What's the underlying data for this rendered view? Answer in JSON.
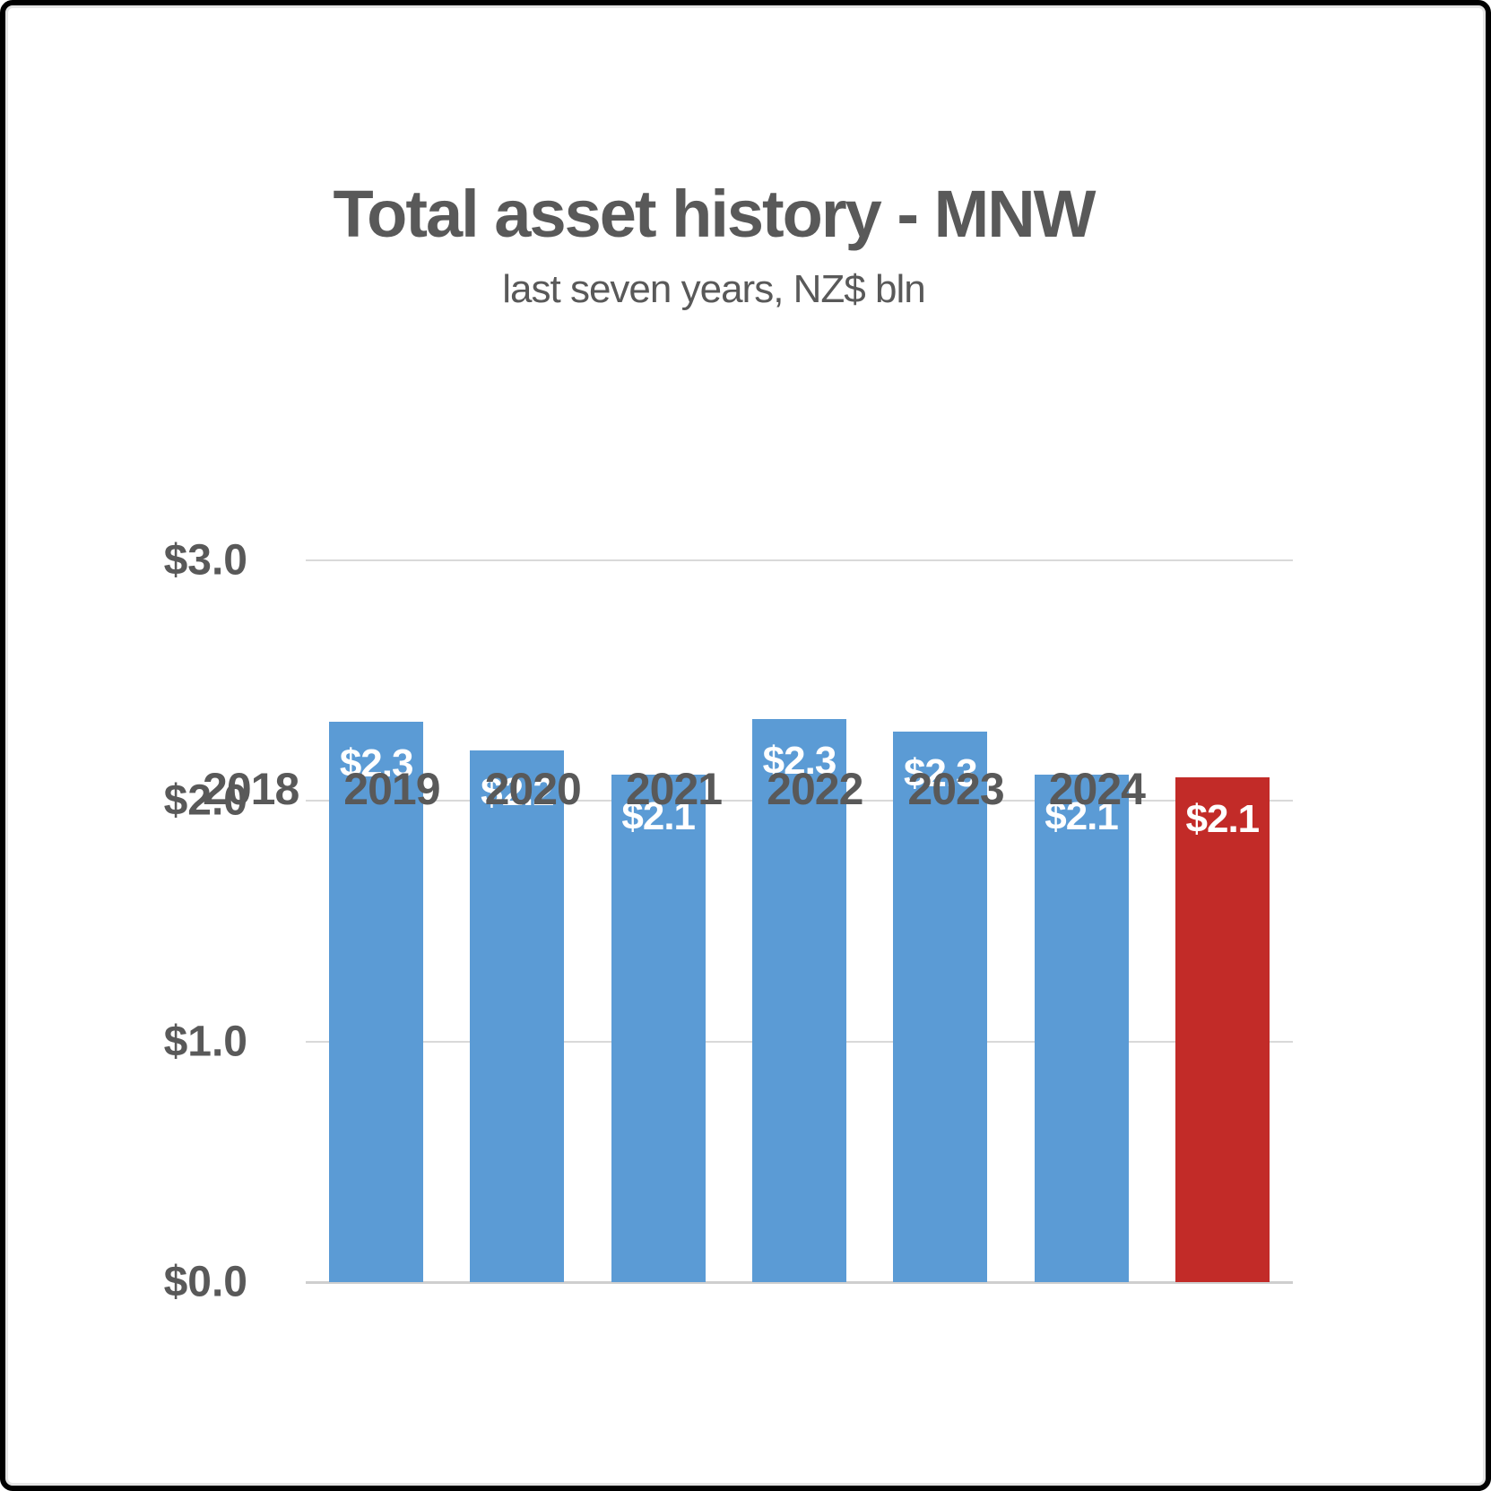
{
  "chart_data": {
    "type": "bar",
    "title": "Total asset history - MNW",
    "subtitle": "last seven years, NZ$ bln",
    "categories": [
      "2018",
      "2019",
      "2020",
      "2021",
      "2022",
      "2023",
      "2024"
    ],
    "values": [
      2.33,
      2.21,
      2.11,
      2.34,
      2.29,
      2.11,
      2.1
    ],
    "bar_labels": [
      "$2.3",
      "$2.2",
      "$2.1",
      "$2.3",
      "$2.3",
      "$2.1",
      "$2.1"
    ],
    "highlight_index": 6,
    "y_ticks": [
      {
        "label": "$3.0",
        "value": 3.0
      },
      {
        "label": "$2.0",
        "value": 2.0
      },
      {
        "label": "$1.0",
        "value": 1.0
      },
      {
        "label": "$0.0",
        "value": 0.0
      }
    ],
    "ylim": [
      0,
      3.0
    ],
    "grid": true,
    "legend": false,
    "label_position": "inside-end",
    "colors": {
      "bar": "#5B9BD5",
      "highlight": "#C22B28",
      "text": "#595959",
      "bar_label_text": "#FFFFFF",
      "gridline": "#D9D9D9",
      "baseline": "#CFCFCF"
    }
  }
}
